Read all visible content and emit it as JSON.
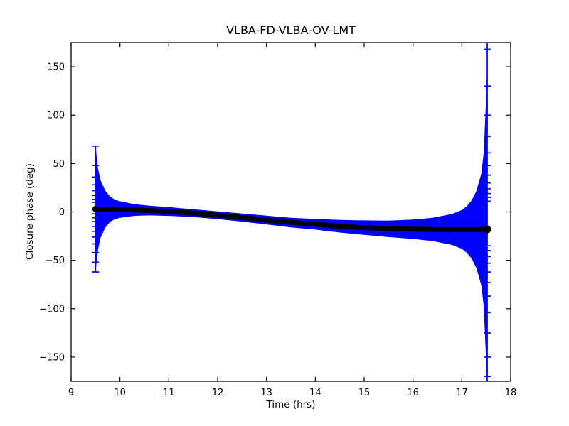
{
  "figure": {
    "background": "#ffffff",
    "axes_color": "#000000"
  },
  "chart_data": {
    "type": "line",
    "subtype": "errorbar-timeseries",
    "title": "VLBA-FD-VLBA-OV-LMT",
    "xlabel": "Time (hrs)",
    "ylabel": "Closure phase (deg)",
    "xlim": [
      9,
      18
    ],
    "ylim": [
      -175,
      175
    ],
    "grid": false,
    "legend": "none",
    "xticks": [
      9,
      10,
      11,
      12,
      13,
      14,
      15,
      16,
      17,
      18
    ],
    "xtick_labels": [
      "9",
      "10",
      "11",
      "12",
      "13",
      "14",
      "15",
      "16",
      "17",
      "18"
    ],
    "ytick_values": [
      -150,
      -100,
      -50,
      0,
      50,
      100,
      150
    ],
    "ytick_labels": [
      "−150",
      "−100",
      "−50",
      "0",
      "50",
      "100",
      "150"
    ],
    "series": [
      {
        "name": "closure-phase-trend",
        "color": "#000005",
        "marker": "filled-circle-dense",
        "x": [
          9.5,
          9.75,
          10,
          10.25,
          10.5,
          10.75,
          11,
          11.25,
          11.5,
          11.75,
          12,
          12.25,
          12.5,
          12.75,
          13,
          13.25,
          13.5,
          13.75,
          14,
          14.25,
          14.5,
          14.75,
          15,
          15.25,
          15.5,
          15.75,
          16,
          16.25,
          16.5,
          16.75,
          17,
          17.25,
          17.52
        ],
        "y": [
          3.0,
          2.8,
          2.5,
          2.1,
          1.6,
          1.1,
          0.4,
          -0.4,
          -1.3,
          -2.3,
          -3.4,
          -4.6,
          -5.8,
          -7.1,
          -8.4,
          -9.6,
          -10.7,
          -11.8,
          -12.8,
          -13.8,
          -14.8,
          -15.6,
          -16.2,
          -16.8,
          -17.2,
          -17.6,
          -17.8,
          -18.0,
          -18.1,
          -18.1,
          -18.1,
          -18.1,
          -18.0
        ]
      }
    ],
    "envelope": {
      "name": "error-envelope",
      "color": "#0000ff",
      "t": [
        9.5,
        9.55,
        9.6,
        9.7,
        9.8,
        9.9,
        10.0,
        10.3,
        10.6,
        11.0,
        11.5,
        12.0,
        12.5,
        13.0,
        13.5,
        14.0,
        14.5,
        15.0,
        15.5,
        16.0,
        16.4,
        16.8,
        17.0,
        17.1,
        17.2,
        17.3,
        17.4,
        17.45,
        17.5,
        17.52
      ],
      "upper": [
        68.0,
        45.0,
        33.0,
        21.9,
        15.8,
        12.7,
        11.0,
        8.0,
        6.4,
        4.9,
        2.7,
        0.6,
        -1.6,
        -3.9,
        -6.0,
        -7.3,
        -8.3,
        -8.7,
        -9.0,
        -7.9,
        -6.1,
        -2.1,
        1.9,
        5.9,
        11.9,
        21.9,
        39.9,
        62.0,
        122.0,
        154.0
      ],
      "lower": [
        -62.0,
        -39.0,
        -27.0,
        -16.1,
        -10.2,
        -7.4,
        -6.0,
        -4.0,
        -3.6,
        -4.1,
        -5.3,
        -7.4,
        -10.0,
        -12.9,
        -16.0,
        -18.3,
        -21.3,
        -23.7,
        -26.0,
        -27.9,
        -30.1,
        -34.1,
        -38.1,
        -42.1,
        -48.1,
        -58.1,
        -76.1,
        -98.0,
        -158.0,
        -190.0
      ]
    },
    "errorbars": [
      {
        "x": 9.5,
        "y_top": 68,
        "y_bottom": -62,
        "caps": [
          68,
          48,
          36,
          28,
          22,
          17,
          13,
          10,
          -2,
          -6,
          -10,
          -15,
          -20,
          -26,
          -33,
          -42,
          -52,
          -62
        ]
      },
      {
        "x": 17.52,
        "y_top": 175,
        "y_bottom": -175,
        "caps": [
          168,
          130,
          100,
          78,
          61,
          48,
          38,
          30,
          24,
          19,
          15,
          11,
          -35,
          -40,
          -46,
          -53,
          -62,
          -73,
          -87,
          -104,
          -125,
          -150,
          -170
        ]
      }
    ]
  }
}
